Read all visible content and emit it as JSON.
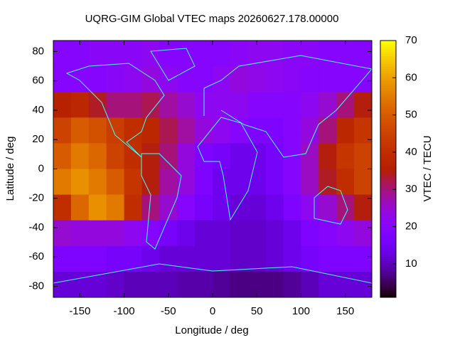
{
  "chart_data": {
    "type": "heatmap",
    "title": "UQRG-GIM Global VTEC maps 20260627.178.00000",
    "xlabel": "Longitude / deg",
    "ylabel": "Latitude / deg",
    "colorbar_label": "VTEC / TECU",
    "xlim": [
      -180,
      180
    ],
    "ylim": [
      -87.5,
      87.5
    ],
    "xticks": [
      -150,
      -100,
      -50,
      0,
      50,
      100,
      150
    ],
    "yticks": [
      -80,
      -60,
      -40,
      -20,
      0,
      20,
      40,
      60,
      80
    ],
    "clim": [
      1,
      70
    ],
    "cticks": [
      10,
      20,
      30,
      40,
      50,
      60,
      70
    ],
    "x": [
      -170,
      -150,
      -130,
      -110,
      -90,
      -70,
      -50,
      -30,
      -10,
      10,
      30,
      50,
      70,
      90,
      110,
      130,
      150,
      170
    ],
    "y": [
      78.75,
      61.25,
      43.75,
      26.25,
      8.75,
      -8.75,
      -26.25,
      -43.75,
      -61.25,
      -78.75
    ],
    "z": [
      [
        20,
        20,
        21,
        21,
        21,
        22,
        20,
        20,
        20,
        20,
        21,
        22,
        22,
        21,
        21,
        20,
        20,
        20
      ],
      [
        20,
        20,
        20,
        21,
        22,
        24,
        22,
        20,
        20,
        22,
        24,
        23,
        22,
        21,
        20,
        20,
        20,
        20
      ],
      [
        36,
        38,
        34,
        30,
        30,
        32,
        28,
        25,
        22,
        22,
        22,
        20,
        20,
        20,
        22,
        25,
        30,
        35
      ],
      [
        45,
        50,
        48,
        44,
        40,
        38,
        32,
        28,
        24,
        22,
        20,
        18,
        18,
        20,
        24,
        30,
        38,
        42
      ],
      [
        50,
        55,
        52,
        45,
        40,
        35,
        30,
        24,
        18,
        16,
        14,
        14,
        16,
        20,
        26,
        35,
        42,
        45
      ],
      [
        55,
        58,
        55,
        50,
        42,
        35,
        28,
        24,
        18,
        14,
        14,
        14,
        16,
        20,
        26,
        34,
        40,
        45
      ],
      [
        40,
        52,
        58,
        55,
        40,
        30,
        25,
        20,
        16,
        14,
        12,
        12,
        14,
        18,
        22,
        25,
        30,
        35
      ],
      [
        25,
        24,
        24,
        24,
        22,
        20,
        16,
        14,
        12,
        12,
        11,
        11,
        12,
        14,
        18,
        20,
        22,
        24
      ],
      [
        18,
        18,
        18,
        16,
        16,
        14,
        12,
        12,
        12,
        12,
        11,
        11,
        12,
        14,
        16,
        18,
        18,
        18
      ],
      [
        12,
        12,
        12,
        11,
        10,
        10,
        10,
        9,
        9,
        8,
        7,
        7,
        7,
        8,
        10,
        12,
        12,
        12
      ]
    ]
  }
}
